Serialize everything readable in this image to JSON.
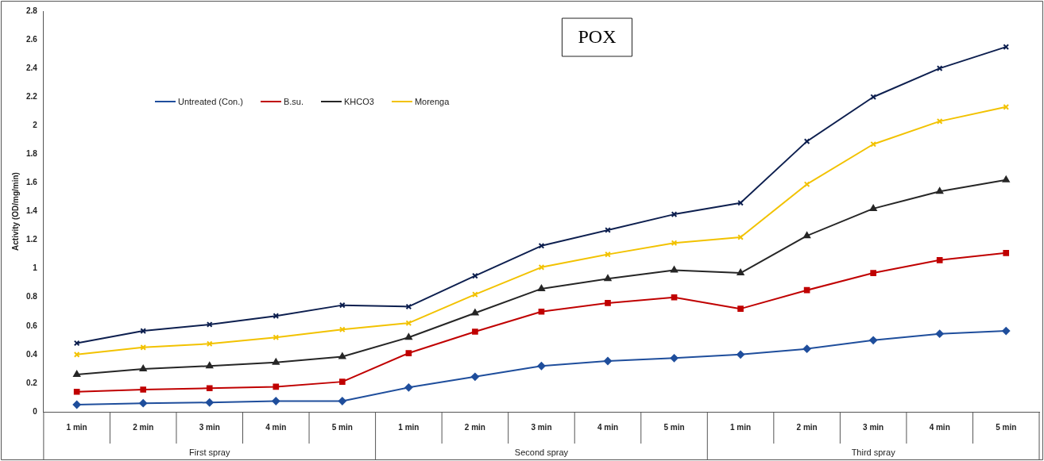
{
  "chart_data": {
    "type": "line",
    "title": "POX",
    "ylabel": "Activity (OD/mg/min)",
    "categories": [
      "1 min",
      "2 min",
      "3 min",
      "4 min",
      "5 min",
      "1 min",
      "2 min",
      "3 min",
      "4 min",
      "5 min",
      "1 min",
      "2 min",
      "3 min",
      "4 min",
      "5 min"
    ],
    "annotations": [
      "First spray",
      "Second spray",
      "Third spray"
    ],
    "ylim": [
      0,
      2.8
    ],
    "yticks": [
      0,
      0.2,
      0.4,
      0.6,
      0.8,
      1,
      1.2,
      1.4,
      1.6,
      1.8,
      2,
      2.2,
      2.4,
      2.6,
      2.8
    ],
    "grid": false,
    "legend": "top left",
    "line_style": "solid",
    "series": [
      {
        "name": "Untreated (Con.)",
        "color": "#1f4e9c",
        "marker": "diamond",
        "values": [
          0.05,
          0.06,
          0.065,
          0.075,
          0.075,
          0.17,
          0.245,
          0.32,
          0.355,
          0.375,
          0.4,
          0.44,
          0.5,
          0.545,
          0.565
        ]
      },
      {
        "name": "B.su.",
        "color": "#c00000",
        "marker": "square",
        "values": [
          0.14,
          0.155,
          0.165,
          0.175,
          0.21,
          0.41,
          0.56,
          0.7,
          0.76,
          0.8,
          0.72,
          0.85,
          0.97,
          1.06,
          1.11
        ]
      },
      {
        "name": "KHCO3",
        "color": "#262626",
        "marker": "triangle",
        "values": [
          0.26,
          0.3,
          0.32,
          0.345,
          0.385,
          0.52,
          0.69,
          0.86,
          0.93,
          0.99,
          0.97,
          1.23,
          1.42,
          1.54,
          1.62
        ]
      },
      {
        "name": "Morenga",
        "color": "#f2c200",
        "marker": "cross",
        "values": [
          0.4,
          0.45,
          0.475,
          0.52,
          0.575,
          0.62,
          0.82,
          1.01,
          1.1,
          1.18,
          1.22,
          1.59,
          1.87,
          2.03,
          2.13
        ]
      },
      {
        "color": "#0d1f4f",
        "marker": "cross",
        "values": [
          0.48,
          0.565,
          0.61,
          0.67,
          0.745,
          0.735,
          0.95,
          1.16,
          1.27,
          1.38,
          1.46,
          1.89,
          2.2,
          2.4,
          2.55
        ]
      }
    ]
  }
}
